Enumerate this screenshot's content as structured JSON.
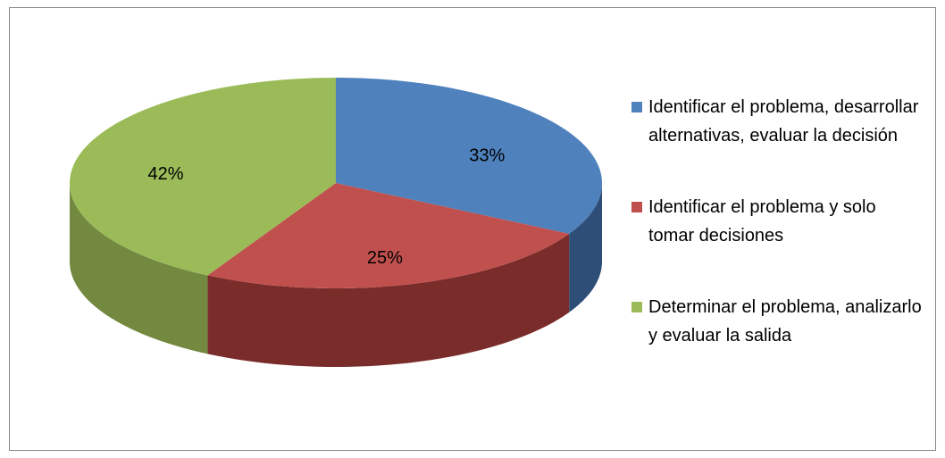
{
  "chart_data": {
    "type": "pie",
    "series": [
      {
        "name": "Identificar el problema, desarrollar alternativas, evaluar la decisión",
        "color": "#4f81bd",
        "side_color": "#2e4e78"
      },
      {
        "name": "Identificar el problema y solo tomar decisiones",
        "color": "#c0504d",
        "side_color": "#7a2c2a"
      },
      {
        "name": "Determinar el problema, analizarlo y evaluar la salida",
        "color": "#9bbb59",
        "side_color": "#72893f"
      }
    ],
    "values": [
      33,
      25,
      42
    ],
    "value_labels": [
      "33%",
      "25%",
      "42%"
    ],
    "legend": "right"
  }
}
